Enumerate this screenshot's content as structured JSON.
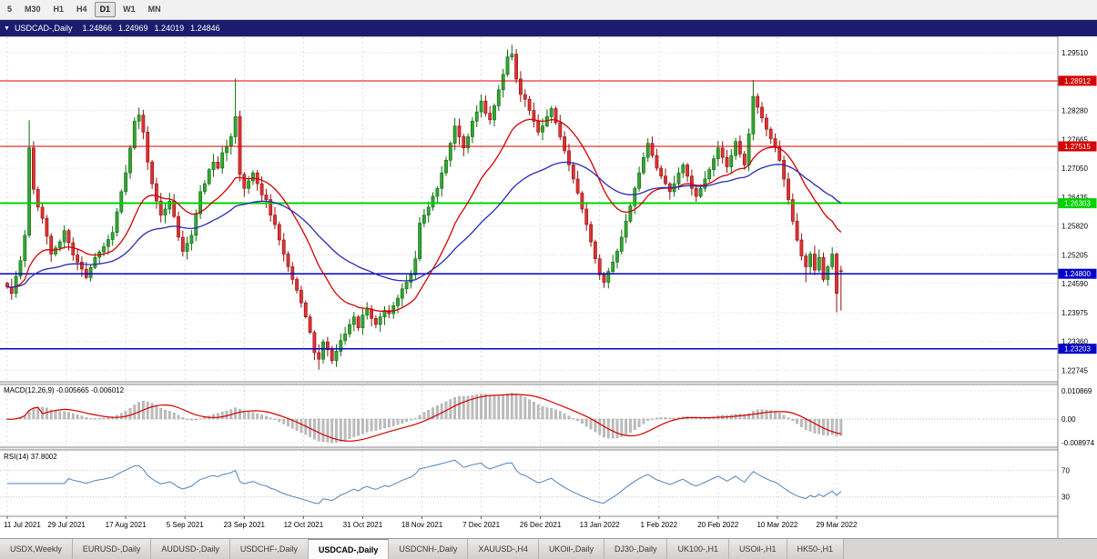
{
  "toolbar": {
    "items": [
      {
        "label": "5",
        "active": false
      },
      {
        "label": "M30",
        "active": false
      },
      {
        "label": "H1",
        "active": false
      },
      {
        "label": "H4",
        "active": false
      },
      {
        "label": "D1",
        "active": true
      },
      {
        "label": "W1",
        "active": false
      },
      {
        "label": "MN",
        "active": false
      }
    ]
  },
  "title_bar": {
    "caret": "▼",
    "symbol": "USDCAD-,Daily",
    "open": "1.24866",
    "high": "1.24969",
    "low": "1.24019",
    "close": "1.24846"
  },
  "tabs": {
    "items": [
      {
        "label": "USDX,Weekly",
        "active": false
      },
      {
        "label": "EURUSD-,Daily",
        "active": false
      },
      {
        "label": "AUDUSD-,Daily",
        "active": false
      },
      {
        "label": "USDCHF-,Daily",
        "active": false
      },
      {
        "label": "USDCAD-,Daily",
        "active": true
      },
      {
        "label": "USDCNH-,Daily",
        "active": false
      },
      {
        "label": "XAUUSD-,H4",
        "active": false
      },
      {
        "label": "UKOil-,Daily",
        "active": false
      },
      {
        "label": "DJ30-,Daily",
        "active": false
      },
      {
        "label": "UK100-,H1",
        "active": false
      },
      {
        "label": "USOil-,H1",
        "active": false
      },
      {
        "label": "HK50-,H1",
        "active": false
      }
    ]
  },
  "palette": {
    "up_fill": "#35a435",
    "up_stroke": "#0f6a0f",
    "down_fill": "#e03232",
    "down_stroke": "#8c1212",
    "ma_fast": "#d40000",
    "ma_slow": "#2929b8",
    "level_red": "#d40000",
    "level_green": "#00d200",
    "level_blue": "#0000c8",
    "macd_bar": "#bdbdbd",
    "macd_signal": "#d40000",
    "rsi_line": "#4f81bd",
    "grid": "#dcdcdc",
    "panel_border": "#8c8c8c",
    "titlebar_bg": "#1c1c6e"
  },
  "chart_data": {
    "type": "candlestick",
    "symbol": "USDCAD",
    "timeframe": "Daily",
    "days": 191,
    "y_range": [
      1.225,
      1.2982
    ],
    "price_grid_labels": [
      "1.29510",
      "1.28280",
      "1.27665",
      "1.27050",
      "1.26435",
      "1.25820",
      "1.25205",
      "1.24590",
      "1.23975",
      "1.23360",
      "1.22745"
    ],
    "levels": [
      {
        "price": 1.28912,
        "label": "1.28912",
        "color": "red",
        "width": 1.3
      },
      {
        "price": 1.27515,
        "label": "1.27515",
        "color": "red",
        "width": 1.3
      },
      {
        "price": 1.26303,
        "label": "1.26303",
        "color": "green",
        "width": 1.8
      },
      {
        "price": 1.248,
        "label": "1.24800",
        "color": "blue",
        "width": 1.8
      },
      {
        "price": 1.23203,
        "label": "1.23203",
        "color": "blue",
        "width": 1.3
      }
    ],
    "x_labels": [
      [
        0,
        "11 Jul 2021"
      ],
      [
        13.5,
        "29 Jul 2021"
      ],
      [
        27,
        "17 Aug 2021"
      ],
      [
        40.5,
        "5 Sep 2021"
      ],
      [
        54,
        "23 Sep 2021"
      ],
      [
        67.5,
        "12 Oct 2021"
      ],
      [
        81,
        "31 Oct 2021"
      ],
      [
        94.5,
        "18 Nov 2021"
      ],
      [
        108,
        "7 Dec 2021"
      ],
      [
        121.5,
        "26 Dec 2021"
      ],
      [
        135,
        "13 Jan 2022"
      ],
      [
        148.5,
        "1 Feb 2022"
      ],
      [
        162,
        "20 Feb 2022"
      ],
      [
        175.5,
        "10 Mar 2022"
      ],
      [
        189,
        "29 Mar 2022"
      ]
    ],
    "price_anchors": [
      [
        0,
        1.2452
      ],
      [
        1,
        1.2438
      ],
      [
        2,
        1.2475
      ],
      [
        3,
        1.2508
      ],
      [
        4,
        1.2562
      ],
      [
        5,
        1.2748
      ],
      [
        6,
        1.266
      ],
      [
        7,
        1.2622
      ],
      [
        8,
        1.2598
      ],
      [
        10,
        1.2522
      ],
      [
        12,
        1.2548
      ],
      [
        13,
        1.2572
      ],
      [
        15,
        1.252
      ],
      [
        17,
        1.249
      ],
      [
        18,
        1.2472
      ],
      [
        20,
        1.2515
      ],
      [
        22,
        1.2538
      ],
      [
        24,
        1.2568
      ],
      [
        25,
        1.2612
      ],
      [
        26,
        1.2655
      ],
      [
        27,
        1.2695
      ],
      [
        28,
        1.2748
      ],
      [
        29,
        1.2805
      ],
      [
        30,
        1.2818
      ],
      [
        31,
        1.2782
      ],
      [
        32,
        1.2718
      ],
      [
        33,
        1.2672
      ],
      [
        34,
        1.2635
      ],
      [
        35,
        1.2605
      ],
      [
        36,
        1.2618
      ],
      [
        37,
        1.2635
      ],
      [
        38,
        1.2602
      ],
      [
        39,
        1.2558
      ],
      [
        40,
        1.2528
      ],
      [
        41,
        1.2545
      ],
      [
        42,
        1.2562
      ],
      [
        43,
        1.2608
      ],
      [
        44,
        1.2655
      ],
      [
        45,
        1.2672
      ],
      [
        46,
        1.2702
      ],
      [
        47,
        1.2718
      ],
      [
        48,
        1.2705
      ],
      [
        49,
        1.2738
      ],
      [
        50,
        1.2752
      ],
      [
        51,
        1.2772
      ],
      [
        52,
        1.2815
      ],
      [
        53,
        1.2692
      ],
      [
        54,
        1.2662
      ],
      [
        55,
        1.2678
      ],
      [
        56,
        1.2695
      ],
      [
        57,
        1.2672
      ],
      [
        58,
        1.2648
      ],
      [
        59,
        1.2638
      ],
      [
        60,
        1.2605
      ],
      [
        61,
        1.2585
      ],
      [
        62,
        1.2552
      ],
      [
        63,
        1.2522
      ],
      [
        64,
        1.2495
      ],
      [
        65,
        1.2468
      ],
      [
        66,
        1.2445
      ],
      [
        67,
        1.2418
      ],
      [
        68,
        1.2388
      ],
      [
        69,
        1.2355
      ],
      [
        70,
        1.2312
      ],
      [
        71,
        1.2298
      ],
      [
        72,
        1.2335
      ],
      [
        73,
        1.2318
      ],
      [
        74,
        1.2295
      ],
      [
        75,
        1.2315
      ],
      [
        76,
        1.2338
      ],
      [
        77,
        1.2352
      ],
      [
        78,
        1.2372
      ],
      [
        79,
        1.2388
      ],
      [
        80,
        1.2365
      ],
      [
        81,
        1.2392
      ],
      [
        82,
        1.2405
      ],
      [
        83,
        1.2385
      ],
      [
        84,
        1.2372
      ],
      [
        85,
        1.2388
      ],
      [
        86,
        1.2402
      ],
      [
        87,
        1.2395
      ],
      [
        88,
        1.2412
      ],
      [
        89,
        1.2428
      ],
      [
        90,
        1.2448
      ],
      [
        91,
        1.2462
      ],
      [
        92,
        1.2478
      ],
      [
        93,
        1.2512
      ],
      [
        94,
        1.2588
      ],
      [
        95,
        1.2605
      ],
      [
        96,
        1.2622
      ],
      [
        97,
        1.2645
      ],
      [
        98,
        1.2662
      ],
      [
        99,
        1.2695
      ],
      [
        100,
        1.2722
      ],
      [
        101,
        1.2758
      ],
      [
        102,
        1.2795
      ],
      [
        103,
        1.2772
      ],
      [
        104,
        1.2748
      ],
      [
        105,
        1.2772
      ],
      [
        106,
        1.2805
      ],
      [
        107,
        1.2825
      ],
      [
        108,
        1.2848
      ],
      [
        109,
        1.2822
      ],
      [
        110,
        1.2808
      ],
      [
        111,
        1.2838
      ],
      [
        112,
        1.2872
      ],
      [
        113,
        1.2905
      ],
      [
        114,
        1.2942
      ],
      [
        115,
        1.2948
      ],
      [
        116,
        1.2895
      ],
      [
        117,
        1.2862
      ],
      [
        118,
        1.2852
      ],
      [
        119,
        1.2828
      ],
      [
        120,
        1.2805
      ],
      [
        121,
        1.2782
      ],
      [
        122,
        1.2795
      ],
      [
        123,
        1.2815
      ],
      [
        124,
        1.2832
      ],
      [
        125,
        1.2802
      ],
      [
        126,
        1.2772
      ],
      [
        127,
        1.2742
      ],
      [
        128,
        1.2712
      ],
      [
        129,
        1.2682
      ],
      [
        130,
        1.2652
      ],
      [
        131,
        1.2618
      ],
      [
        132,
        1.2585
      ],
      [
        133,
        1.2548
      ],
      [
        134,
        1.2512
      ],
      [
        135,
        1.2478
      ],
      [
        136,
        1.2462
      ],
      [
        137,
        1.2485
      ],
      [
        138,
        1.2505
      ],
      [
        139,
        1.2528
      ],
      [
        140,
        1.2558
      ],
      [
        141,
        1.2592
      ],
      [
        142,
        1.2625
      ],
      [
        143,
        1.2662
      ],
      [
        144,
        1.2695
      ],
      [
        145,
        1.2728
      ],
      [
        146,
        1.2758
      ],
      [
        147,
        1.2732
      ],
      [
        148,
        1.2705
      ],
      [
        149,
        1.2688
      ],
      [
        150,
        1.2672
      ],
      [
        151,
        1.2655
      ],
      [
        152,
        1.2672
      ],
      [
        153,
        1.2695
      ],
      [
        154,
        1.2712
      ],
      [
        155,
        1.2688
      ],
      [
        156,
        1.2662
      ],
      [
        157,
        1.2645
      ],
      [
        158,
        1.2662
      ],
      [
        159,
        1.2682
      ],
      [
        160,
        1.2702
      ],
      [
        161,
        1.2725
      ],
      [
        162,
        1.2748
      ],
      [
        163,
        1.2728
      ],
      [
        164,
        1.2708
      ],
      [
        165,
        1.2732
      ],
      [
        166,
        1.2762
      ],
      [
        167,
        1.2735
      ],
      [
        168,
        1.2712
      ],
      [
        169,
        1.2778
      ],
      [
        170,
        1.2858
      ],
      [
        171,
        1.2835
      ],
      [
        172,
        1.2812
      ],
      [
        173,
        1.2788
      ],
      [
        174,
        1.2768
      ],
      [
        175,
        1.2752
      ],
      [
        176,
        1.2722
      ],
      [
        177,
        1.2682
      ],
      [
        178,
        1.2638
      ],
      [
        179,
        1.2592
      ],
      [
        180,
        1.2552
      ],
      [
        181,
        1.2518
      ],
      [
        182,
        1.2495
      ],
      [
        183,
        1.2522
      ],
      [
        184,
        1.2488
      ],
      [
        185,
        1.2515
      ],
      [
        186,
        1.2468
      ],
      [
        187,
        1.2495
      ],
      [
        188,
        1.2522
      ],
      [
        189,
        1.2438
      ],
      [
        190,
        1.24846
      ]
    ],
    "wick_overrides": {
      "highs": [
        [
          5,
          1.2807
        ],
        [
          30,
          1.2834
        ],
        [
          52,
          1.2896
        ],
        [
          114,
          1.2958
        ],
        [
          115,
          1.2968
        ],
        [
          170,
          1.2893
        ]
      ],
      "lows": [
        [
          71,
          1.2276
        ],
        [
          74,
          1.2288
        ],
        [
          136,
          1.245
        ],
        [
          182,
          1.2462
        ],
        [
          189,
          1.2398
        ]
      ]
    },
    "last_candle": [
      1.24866,
      1.24969,
      1.24019,
      1.24846
    ],
    "indicators": {
      "ma_fast_period": 20,
      "ma_slow_period": 50,
      "macd": {
        "label": "MACD(12,26,9) -0.005665 -0.006012",
        "fast": 12,
        "slow": 26,
        "signal": 9,
        "axis_labels": [
          "0.010869",
          "0.00",
          "-0.008974"
        ]
      },
      "rsi": {
        "label": "RSI(14) 37.8002",
        "period": 14,
        "levels": [
          70,
          30
        ],
        "axis_labels": [
          "70",
          "30"
        ]
      }
    }
  }
}
